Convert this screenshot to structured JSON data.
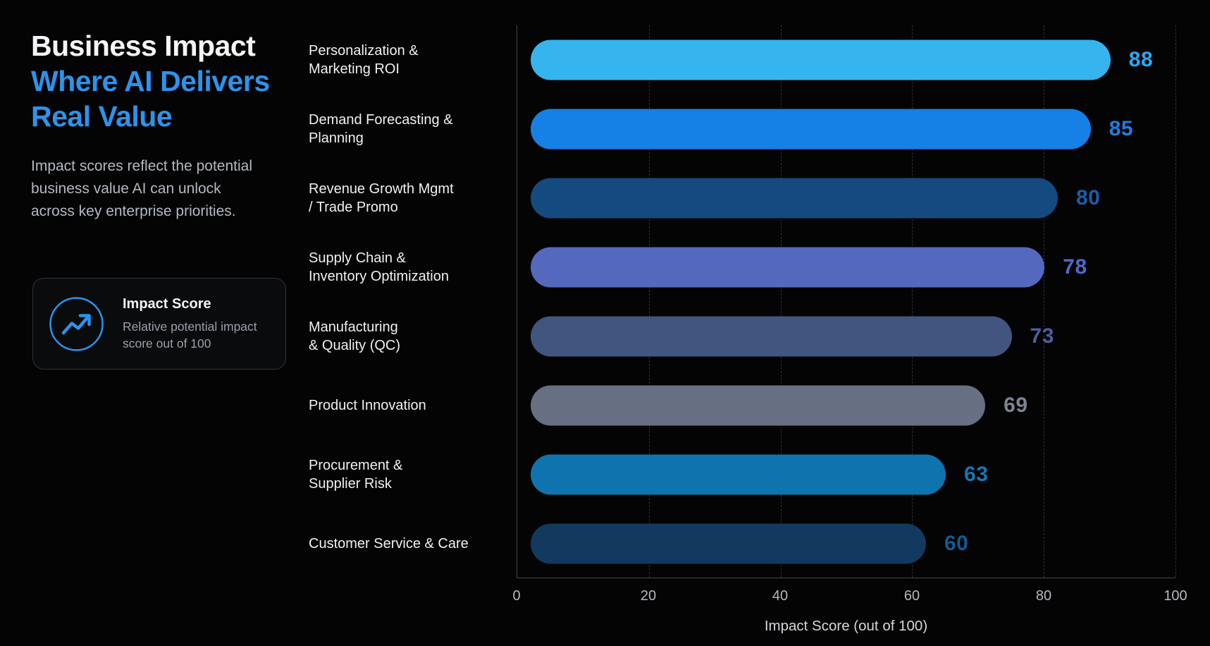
{
  "page": {
    "background": "#040405"
  },
  "header": {
    "title_white": "Business Impact",
    "title_accent": "Where AI Delivers\nReal Value",
    "accent_color": "#2e93ea",
    "subtitle": "Impact scores reflect the potential business value AI can unlock across key enterprise priorities."
  },
  "legend_card": {
    "icon": "trending-up-icon",
    "icon_color": "#2d93ea",
    "title": "Impact Score",
    "description": "Relative potential impact\nscore out of 100"
  },
  "chart_data": {
    "type": "bar",
    "orientation": "horizontal",
    "xlabel": "Impact Score (out of 100)",
    "xlim": [
      0,
      100
    ],
    "x_ticks": [
      0,
      20,
      40,
      60,
      80,
      100
    ],
    "grid": "vertical-dashed",
    "legend_position": "left-panel-card",
    "categories": [
      "Personalization &\nMarketing ROI",
      "Demand Forecasting &\nPlanning",
      "Revenue Growth Mgmt\n/ Trade Promo",
      "Supply Chain &\nInventory Optimization",
      "Manufacturing\n& Quality (QC)",
      "Product Innovation",
      "Procurement &\nSupplier Risk",
      "Customer Service & Care"
    ],
    "values": [
      88,
      85,
      80,
      78,
      73,
      69,
      63,
      60
    ],
    "bar_colors": [
      "#35b4ee",
      "#1580e6",
      "#144a80",
      "#5469bd",
      "#41557f",
      "#667082",
      "#0f74ad",
      "#113a5e"
    ],
    "value_label_colors": [
      "#2ba9f0",
      "#1e7fdb",
      "#1e5ca6",
      "#5068c8",
      "#4a5fa0",
      "#7b8491",
      "#1577b4",
      "#175a8d"
    ]
  }
}
